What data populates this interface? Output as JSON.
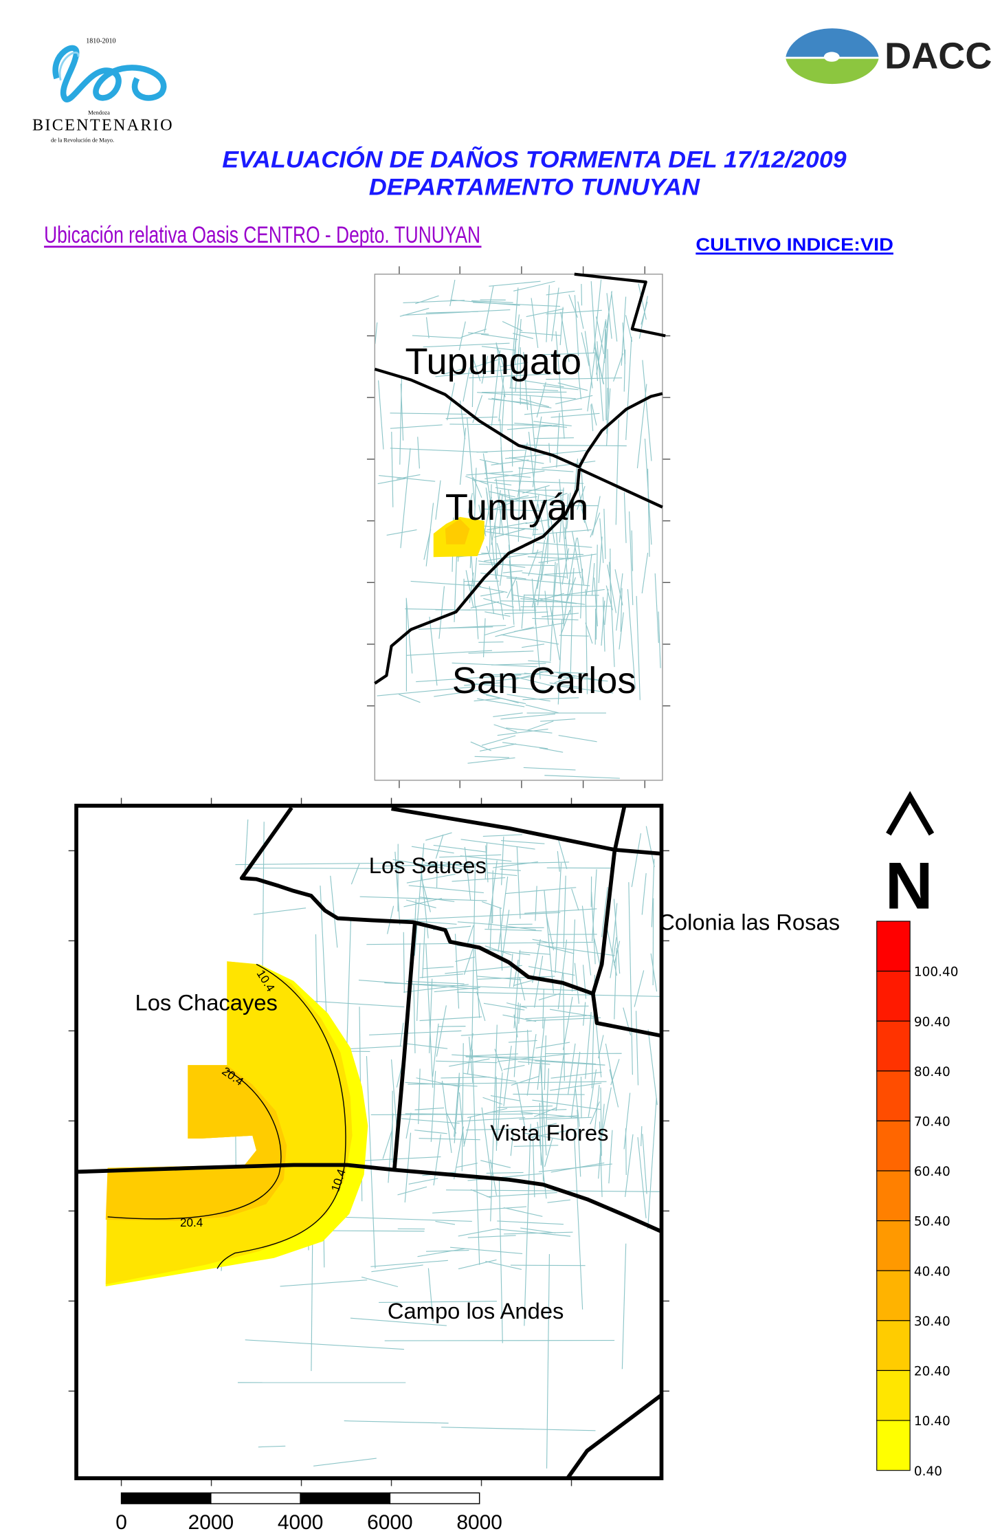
{
  "header": {
    "logo_left": {
      "years": "1810-2010",
      "region": "Mendoza",
      "name": "Bicentenario",
      "tagline": "de la Revolución de Mayo."
    },
    "logo_right": {
      "name": "DACC"
    },
    "title_line1": "EVALUACIÓN DE DAÑOS TORMENTA DEL 17/12/2009",
    "title_line2": "DEPARTAMENTO TUNUYAN",
    "subtitle": "Ubicación relativa Oasis CENTRO - Depto. TUNUYAN",
    "crop_index": "CULTIVO INDICE:VID"
  },
  "overview_map": {
    "labels": [
      "Tupungato",
      "Tunuyán",
      "San Carlos"
    ]
  },
  "detail_map": {
    "labels": [
      "Los Sauces",
      "Colonia las Rosas",
      "Los Chacayes",
      "Vista Flores",
      "Campo los Andes"
    ],
    "contour_labels": [
      "10.4",
      "20.4",
      "20.4",
      "10.4"
    ],
    "north_arrow": "N"
  },
  "legend": {
    "labels": [
      "100.40",
      "90.40",
      "80.40",
      "70.40",
      "60.40",
      "50.40",
      "40.40",
      "30.40",
      "20.40",
      "10.40",
      "0.40"
    ],
    "colors": [
      "#ff0000",
      "#ff1a00",
      "#ff3300",
      "#ff4d00",
      "#ff6600",
      "#ff8000",
      "#ff9900",
      "#ffb300",
      "#ffcc00",
      "#ffe600",
      "#ffff00"
    ]
  },
  "scale_bar": {
    "labels": [
      "0",
      "2000",
      "4000",
      "6000",
      "8000"
    ]
  }
}
